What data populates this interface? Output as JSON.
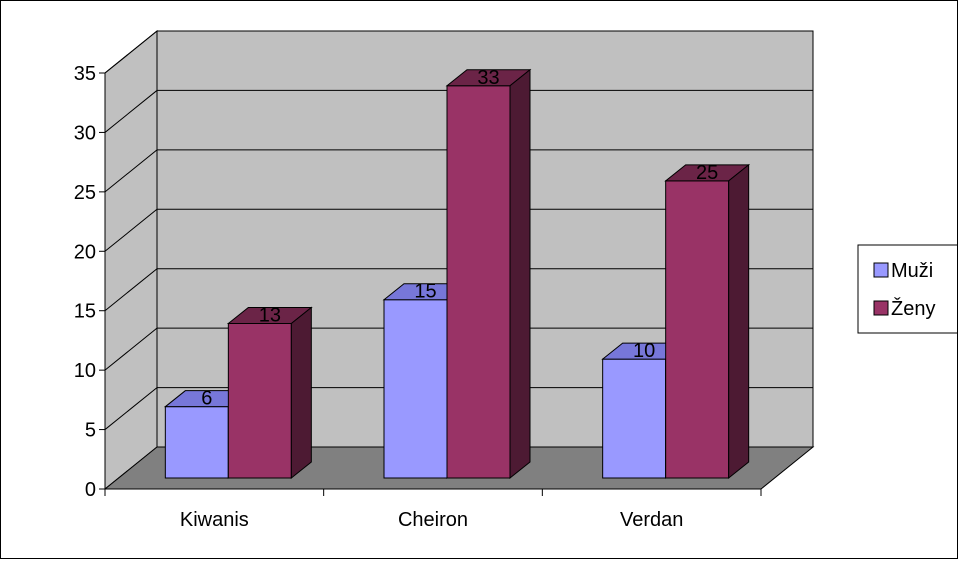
{
  "chart_data": {
    "type": "bar",
    "categories": [
      "Kiwanis",
      "Cheiron",
      "Verdan"
    ],
    "series": [
      {
        "name": "Muži",
        "values": [
          6,
          15,
          10
        ],
        "color": "#9999ff"
      },
      {
        "name": "Ženy",
        "values": [
          13,
          33,
          25
        ],
        "color": "#993366"
      }
    ],
    "y_ticks": [
      "0",
      "5",
      "10",
      "15",
      "20",
      "25",
      "30",
      "35"
    ],
    "ylim": [
      0,
      35
    ],
    "grid": true,
    "legend_position": "right",
    "data_labels": true,
    "projection": "3d",
    "wall_color": "#c0c0c0",
    "floor_color": "#808080"
  }
}
